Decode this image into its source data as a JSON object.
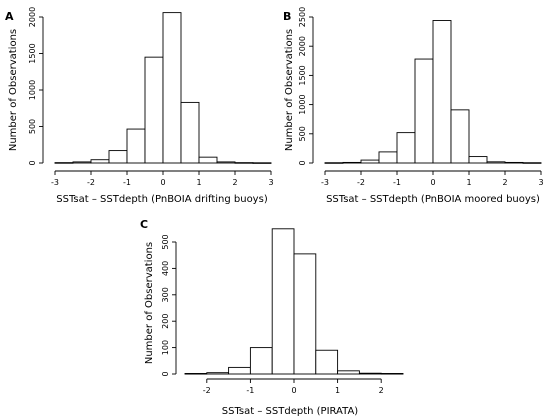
{
  "chart_data": [
    {
      "panel_label": "A",
      "type": "bar",
      "bin_edges": [
        -3,
        -2.5,
        -2,
        -1.5,
        -1,
        -0.5,
        0,
        0.5,
        1,
        1.5,
        2,
        2.5,
        3
      ],
      "values": [
        5,
        15,
        45,
        170,
        465,
        1450,
        2060,
        830,
        80,
        15,
        5,
        3
      ],
      "xlabel": "SSTsat – SSTdepth (PnBOIA drifting buoys)",
      "ylabel": "Number of Observations",
      "xlim": [
        -3,
        3
      ],
      "ylim": [
        0,
        2000
      ],
      "xticks": [
        "-3",
        "-2",
        "-1",
        "0",
        "1",
        "2",
        "3"
      ],
      "yticks": [
        "0",
        "500",
        "1000",
        "1500",
        "2000"
      ]
    },
    {
      "panel_label": "B",
      "type": "bar",
      "bin_edges": [
        -3,
        -2.5,
        -2,
        -1.5,
        -1,
        -0.5,
        0,
        0.5,
        1,
        1.5,
        2,
        2.5,
        3
      ],
      "values": [
        5,
        10,
        50,
        190,
        520,
        1780,
        2440,
        910,
        110,
        20,
        10,
        5
      ],
      "xlabel": "SSTsat – SSTdepth (PnBOIA moored buoys)",
      "ylabel": "Number of Observations",
      "xlim": [
        -3,
        3
      ],
      "ylim": [
        0,
        2500
      ],
      "xticks": [
        "-3",
        "-2",
        "-1",
        "0",
        "1",
        "2",
        "3"
      ],
      "yticks": [
        "0",
        "500",
        "1000",
        "1500",
        "2000",
        "2500"
      ]
    },
    {
      "panel_label": "C",
      "type": "bar",
      "bin_edges": [
        -2.5,
        -2,
        -1.5,
        -1,
        -0.5,
        0,
        0.5,
        1,
        1.5,
        2,
        2.5
      ],
      "values": [
        2,
        5,
        25,
        100,
        550,
        455,
        90,
        12,
        3,
        2
      ],
      "xlabel": "SSTsat – SSTdepth (PIRATA)",
      "ylabel": "Number of Observations",
      "xlim": [
        -2.5,
        2.5
      ],
      "ylim": [
        0,
        500
      ],
      "xticks": [
        "-2",
        "-1",
        "0",
        "1",
        "2"
      ],
      "yticks": [
        "0",
        "100",
        "200",
        "300",
        "400",
        "500"
      ]
    }
  ]
}
